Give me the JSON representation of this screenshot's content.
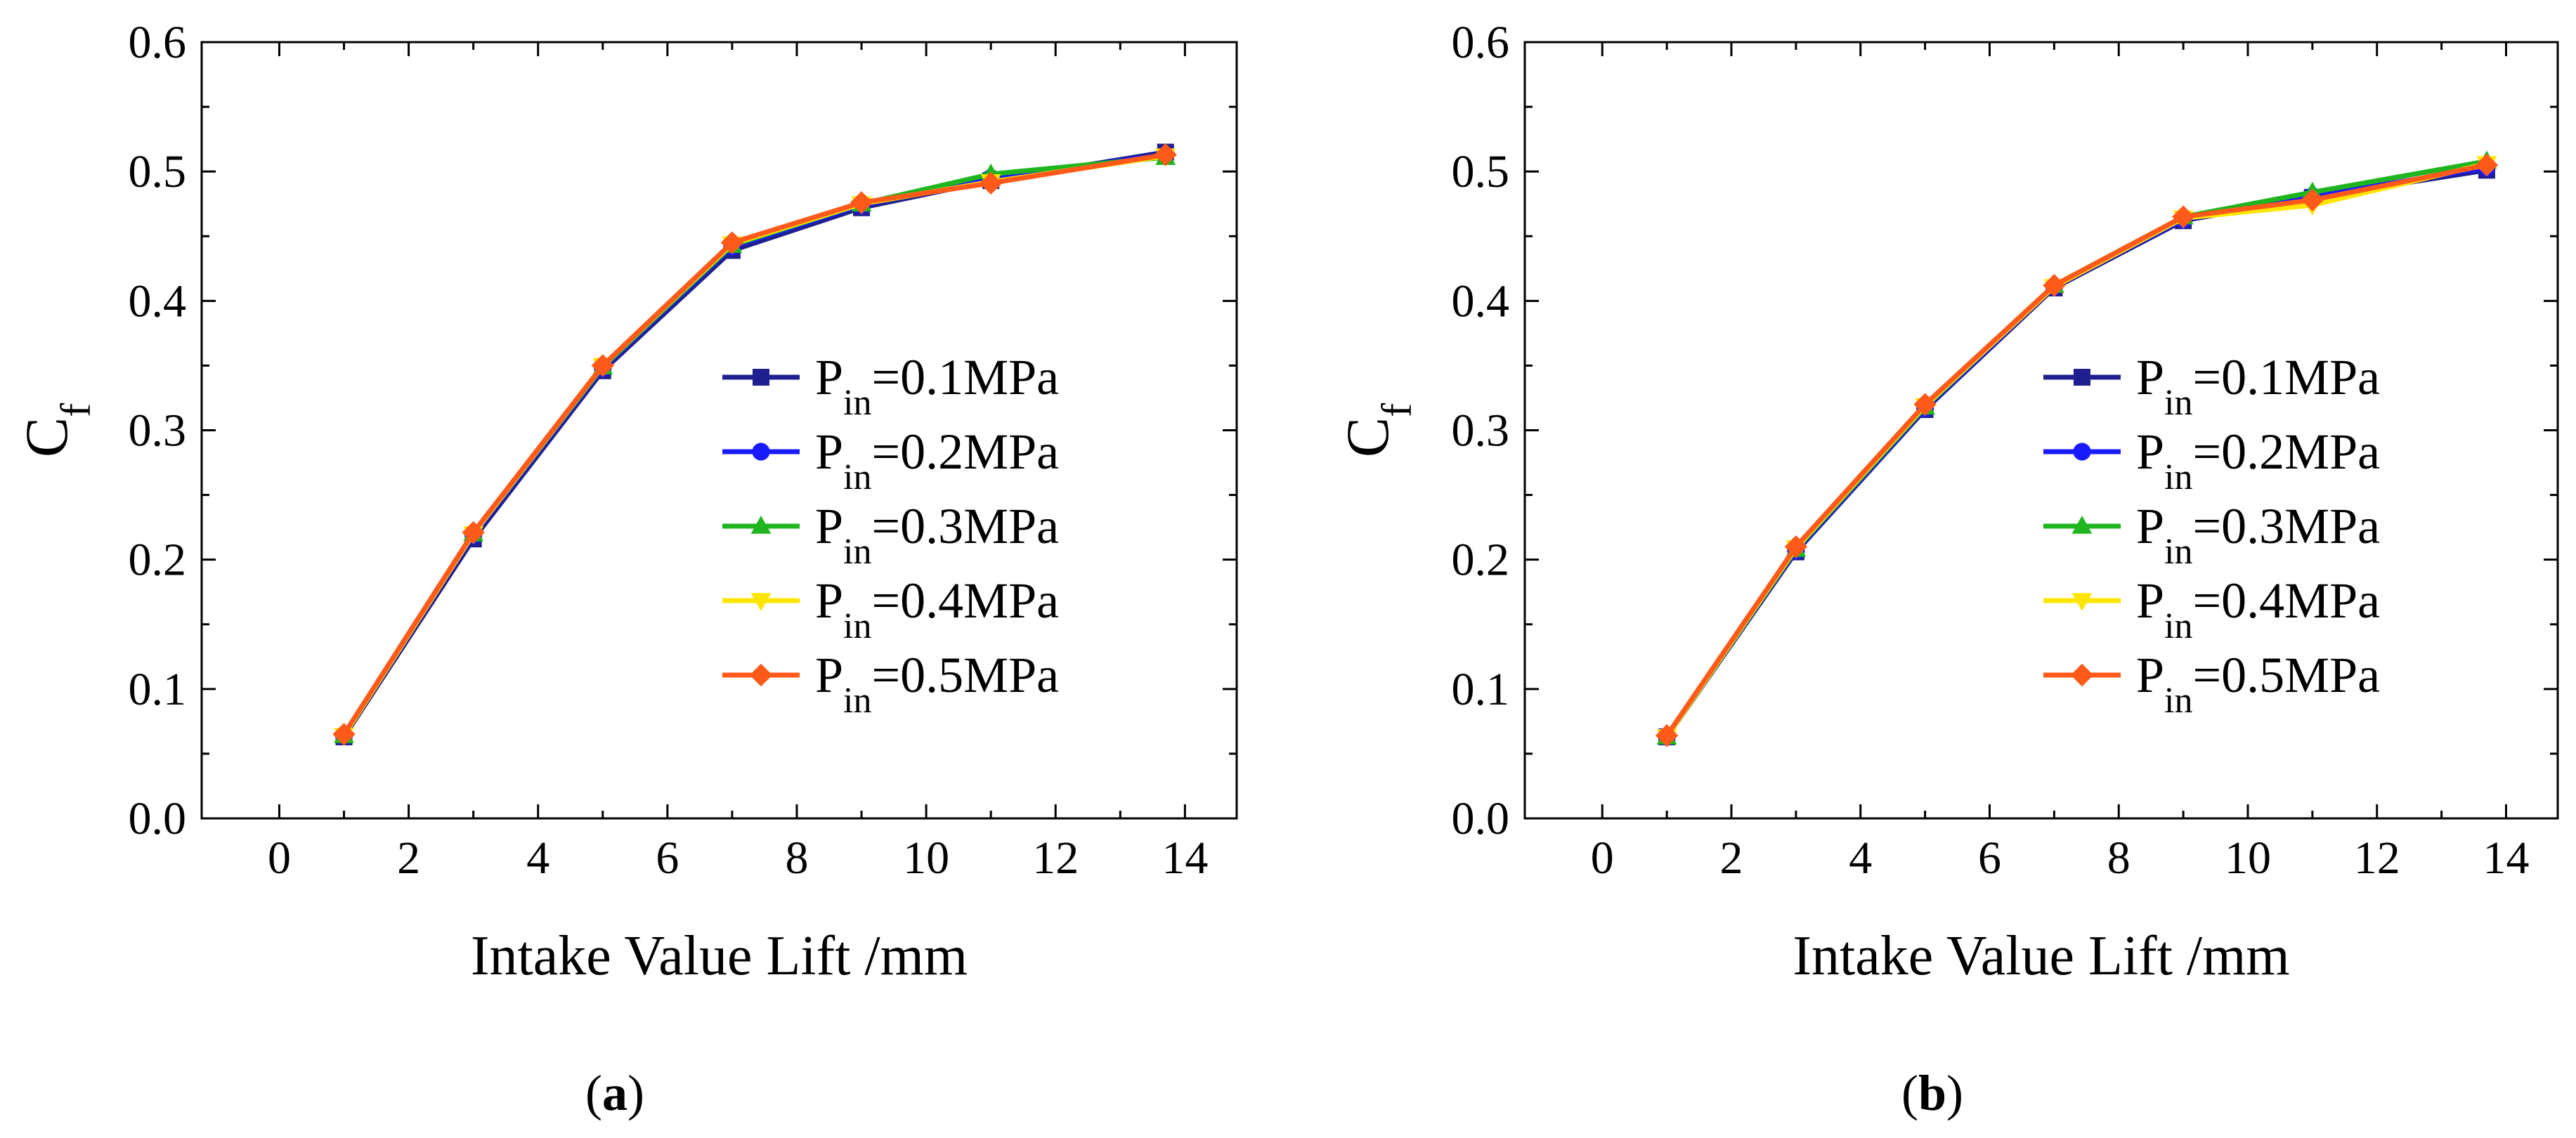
{
  "colors": {
    "p01": "#1f1f8f",
    "p02": "#1a1aff",
    "p03": "#1fb51f",
    "p04": "#ffe600",
    "p05": "#ff5a1a"
  },
  "legend_entries": [
    {
      "base": "P",
      "sub": "in",
      "rest": "=0.1MPa",
      "marker": "square",
      "color_key": "p01"
    },
    {
      "base": "P",
      "sub": "in",
      "rest": "=0.2MPa",
      "marker": "circle",
      "color_key": "p02"
    },
    {
      "base": "P",
      "sub": "in",
      "rest": "=0.3MPa",
      "marker": "triangle-up",
      "color_key": "p03"
    },
    {
      "base": "P",
      "sub": "in",
      "rest": "=0.4MPa",
      "marker": "triangle-down",
      "color_key": "p04"
    },
    {
      "base": "P",
      "sub": "in",
      "rest": "=0.5MPa",
      "marker": "diamond",
      "color_key": "p05"
    }
  ],
  "chart_data": [
    {
      "type": "line",
      "panel_label": "(a)",
      "panel_letter": "a",
      "xlabel": "Intake Value Lift /mm",
      "ylabel": {
        "base": "C",
        "sub": "f"
      },
      "xlim": [
        -1.2,
        14.8
      ],
      "ylim": [
        0.0,
        0.6
      ],
      "xticks": [
        0,
        2,
        4,
        6,
        8,
        10,
        12,
        14
      ],
      "yticks": [
        0.0,
        0.1,
        0.2,
        0.3,
        0.4,
        0.5,
        0.6
      ],
      "ytick_labels": [
        "0.0",
        "0.1",
        "0.2",
        "0.3",
        "0.4",
        "0.5",
        "0.6"
      ],
      "legend_position": "right-middle",
      "x": [
        1,
        3,
        5,
        7,
        9,
        11,
        13.7
      ],
      "series": [
        {
          "name": "Pin=0.1MPa",
          "values": [
            0.063,
            0.216,
            0.346,
            0.439,
            0.472,
            0.493,
            0.515
          ]
        },
        {
          "name": "Pin=0.2MPa",
          "values": [
            0.064,
            0.219,
            0.348,
            0.442,
            0.474,
            0.495,
            0.513
          ]
        },
        {
          "name": "Pin=0.3MPa",
          "values": [
            0.064,
            0.22,
            0.349,
            0.443,
            0.475,
            0.498,
            0.511
          ]
        },
        {
          "name": "Pin=0.4MPa",
          "values": [
            0.064,
            0.22,
            0.35,
            0.444,
            0.475,
            0.492,
            0.512
          ]
        },
        {
          "name": "Pin=0.5MPa",
          "values": [
            0.065,
            0.221,
            0.35,
            0.445,
            0.476,
            0.491,
            0.513
          ]
        }
      ]
    },
    {
      "type": "line",
      "panel_label": "(b)",
      "panel_letter": "b",
      "xlabel": "Intake Value Lift /mm",
      "ylabel": {
        "base": "C",
        "sub": "f"
      },
      "xlim": [
        -1.2,
        14.8
      ],
      "ylim": [
        0.0,
        0.6
      ],
      "xticks": [
        0,
        2,
        4,
        6,
        8,
        10,
        12,
        14
      ],
      "yticks": [
        0.0,
        0.1,
        0.2,
        0.3,
        0.4,
        0.5,
        0.6
      ],
      "ytick_labels": [
        "0.0",
        "0.1",
        "0.2",
        "0.3",
        "0.4",
        "0.5",
        "0.6"
      ],
      "legend_position": "right-middle",
      "x": [
        1,
        3,
        5,
        7,
        9,
        11,
        13.7
      ],
      "series": [
        {
          "name": "Pin=0.1MPa",
          "values": [
            0.063,
            0.206,
            0.316,
            0.41,
            0.462,
            0.48,
            0.501
          ]
        },
        {
          "name": "Pin=0.2MPa",
          "values": [
            0.063,
            0.207,
            0.317,
            0.411,
            0.463,
            0.481,
            0.503
          ]
        },
        {
          "name": "Pin=0.3MPa",
          "values": [
            0.063,
            0.208,
            0.318,
            0.412,
            0.465,
            0.484,
            0.508
          ]
        },
        {
          "name": "Pin=0.4MPa",
          "values": [
            0.063,
            0.209,
            0.319,
            0.411,
            0.464,
            0.474,
            0.506
          ]
        },
        {
          "name": "Pin=0.5MPa",
          "values": [
            0.064,
            0.21,
            0.32,
            0.412,
            0.465,
            0.478,
            0.505
          ]
        }
      ]
    }
  ]
}
